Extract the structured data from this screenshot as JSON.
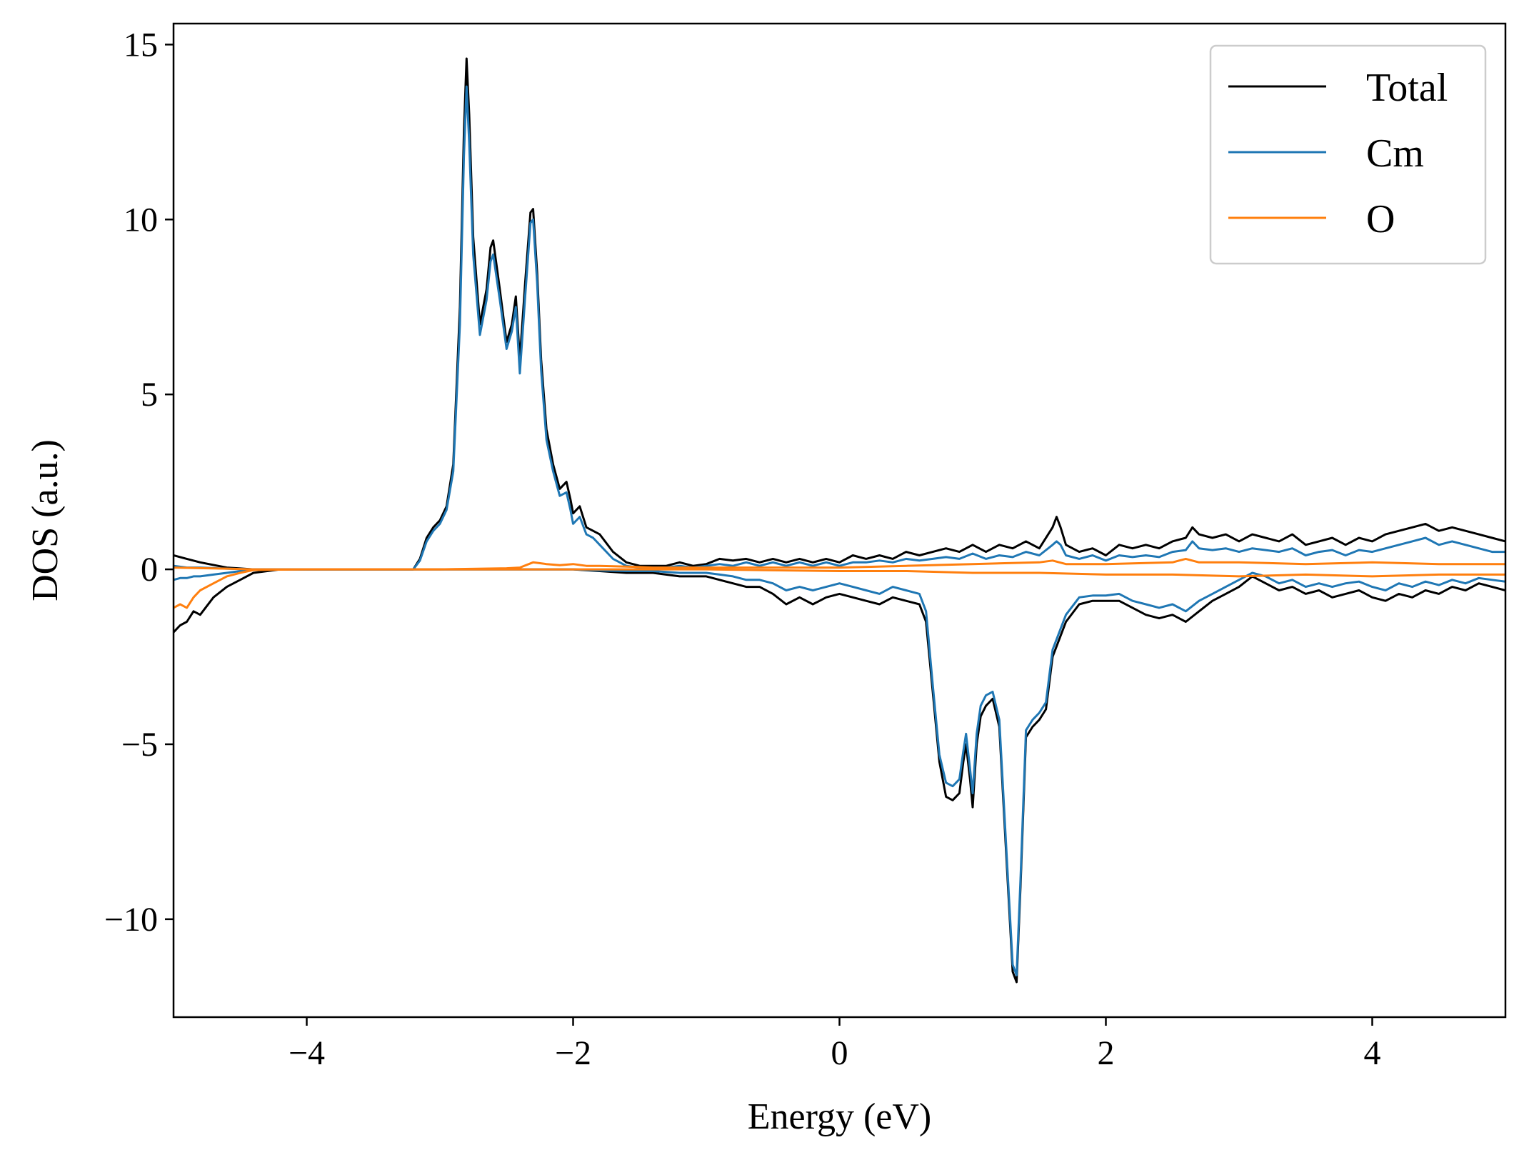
{
  "chart_data": {
    "type": "line",
    "title": "",
    "xlabel": "Energy (eV)",
    "ylabel": "DOS (a.u.)",
    "xlim": [
      -5,
      5
    ],
    "ylim": [
      -12.8,
      15.6
    ],
    "xticks": [
      -4,
      -2,
      0,
      2,
      4
    ],
    "xtick_labels": [
      "−4",
      "−2",
      "0",
      "2",
      "4"
    ],
    "yticks": [
      -10,
      -5,
      0,
      5,
      10,
      15
    ],
    "ytick_labels": [
      "−10",
      "−5",
      "0",
      "5",
      "10",
      "15"
    ],
    "grid": false,
    "legend_position": "top-right",
    "series": [
      {
        "name": "Total",
        "color": "#000000",
        "spin_up": {
          "x": [
            -5.0,
            -4.9,
            -4.8,
            -4.6,
            -4.4,
            -4.0,
            -3.5,
            -3.2,
            -3.15,
            -3.1,
            -3.05,
            -3.0,
            -2.95,
            -2.9,
            -2.85,
            -2.82,
            -2.8,
            -2.78,
            -2.75,
            -2.7,
            -2.65,
            -2.62,
            -2.6,
            -2.55,
            -2.5,
            -2.46,
            -2.43,
            -2.4,
            -2.36,
            -2.32,
            -2.3,
            -2.27,
            -2.24,
            -2.2,
            -2.15,
            -2.1,
            -2.05,
            -2.02,
            -2.0,
            -1.95,
            -1.9,
            -1.85,
            -1.8,
            -1.7,
            -1.6,
            -1.5,
            -1.4,
            -1.3,
            -1.2,
            -1.1,
            -1.0,
            -0.9,
            -0.8,
            -0.7,
            -0.6,
            -0.5,
            -0.4,
            -0.3,
            -0.2,
            -0.1,
            0.0,
            0.1,
            0.2,
            0.3,
            0.4,
            0.5,
            0.6,
            0.7,
            0.8,
            0.9,
            1.0,
            1.1,
            1.2,
            1.3,
            1.4,
            1.5,
            1.6,
            1.63,
            1.66,
            1.7,
            1.8,
            1.9,
            2.0,
            2.1,
            2.2,
            2.3,
            2.4,
            2.5,
            2.6,
            2.65,
            2.7,
            2.8,
            2.9,
            3.0,
            3.1,
            3.2,
            3.3,
            3.4,
            3.5,
            3.6,
            3.7,
            3.8,
            3.9,
            4.0,
            4.1,
            4.2,
            4.3,
            4.4,
            4.5,
            4.6,
            4.7,
            4.8,
            4.9,
            5.0
          ],
          "y": [
            0.4,
            0.3,
            0.2,
            0.05,
            0.0,
            0.0,
            0.0,
            0.0,
            0.3,
            0.9,
            1.2,
            1.4,
            1.8,
            3.0,
            7.5,
            12.5,
            14.6,
            13.0,
            9.5,
            7.0,
            8.0,
            9.2,
            9.4,
            8.0,
            6.5,
            7.0,
            7.8,
            6.0,
            8.2,
            10.2,
            10.3,
            8.5,
            6.0,
            4.0,
            3.0,
            2.3,
            2.5,
            2.0,
            1.6,
            1.8,
            1.2,
            1.1,
            1.0,
            0.5,
            0.2,
            0.1,
            0.1,
            0.1,
            0.2,
            0.1,
            0.15,
            0.3,
            0.25,
            0.3,
            0.2,
            0.3,
            0.2,
            0.3,
            0.2,
            0.3,
            0.2,
            0.4,
            0.3,
            0.4,
            0.3,
            0.5,
            0.4,
            0.5,
            0.6,
            0.5,
            0.7,
            0.5,
            0.7,
            0.6,
            0.8,
            0.6,
            1.2,
            1.5,
            1.2,
            0.7,
            0.5,
            0.6,
            0.4,
            0.7,
            0.6,
            0.7,
            0.6,
            0.8,
            0.9,
            1.2,
            1.0,
            0.9,
            1.0,
            0.8,
            1.0,
            0.9,
            0.8,
            1.0,
            0.7,
            0.8,
            0.9,
            0.7,
            0.9,
            0.8,
            1.0,
            1.1,
            1.2,
            1.3,
            1.1,
            1.2,
            1.1,
            1.0,
            0.9,
            0.8
          ]
        },
        "spin_down": {
          "x": [
            -5.0,
            -4.95,
            -4.9,
            -4.85,
            -4.8,
            -4.7,
            -4.6,
            -4.5,
            -4.4,
            -4.2,
            -3.5,
            -3.0,
            -2.5,
            -2.0,
            -1.8,
            -1.6,
            -1.4,
            -1.2,
            -1.0,
            -0.9,
            -0.8,
            -0.7,
            -0.6,
            -0.5,
            -0.4,
            -0.3,
            -0.2,
            -0.1,
            0.0,
            0.1,
            0.2,
            0.3,
            0.4,
            0.5,
            0.6,
            0.65,
            0.7,
            0.75,
            0.8,
            0.85,
            0.9,
            0.93,
            0.95,
            0.98,
            1.0,
            1.03,
            1.06,
            1.1,
            1.15,
            1.2,
            1.25,
            1.3,
            1.33,
            1.36,
            1.4,
            1.45,
            1.5,
            1.55,
            1.6,
            1.7,
            1.8,
            1.9,
            2.0,
            2.1,
            2.2,
            2.3,
            2.4,
            2.5,
            2.6,
            2.7,
            2.8,
            2.9,
            3.0,
            3.1,
            3.2,
            3.3,
            3.4,
            3.5,
            3.6,
            3.7,
            3.8,
            3.9,
            4.0,
            4.1,
            4.2,
            4.3,
            4.4,
            4.5,
            4.6,
            4.7,
            4.8,
            4.9,
            5.0
          ],
          "y": [
            -1.8,
            -1.6,
            -1.5,
            -1.2,
            -1.3,
            -0.8,
            -0.5,
            -0.3,
            -0.1,
            0.0,
            0.0,
            0.0,
            0.0,
            0.0,
            -0.05,
            -0.1,
            -0.1,
            -0.2,
            -0.2,
            -0.3,
            -0.4,
            -0.5,
            -0.5,
            -0.7,
            -1.0,
            -0.8,
            -1.0,
            -0.8,
            -0.7,
            -0.8,
            -0.9,
            -1.0,
            -0.8,
            -0.9,
            -1.0,
            -1.5,
            -3.5,
            -5.5,
            -6.5,
            -6.6,
            -6.4,
            -5.5,
            -5.0,
            -6.0,
            -6.8,
            -5.0,
            -4.2,
            -3.9,
            -3.7,
            -4.5,
            -8.0,
            -11.5,
            -11.8,
            -9.0,
            -4.8,
            -4.5,
            -4.3,
            -4.0,
            -2.5,
            -1.5,
            -1.0,
            -0.9,
            -0.9,
            -0.9,
            -1.1,
            -1.3,
            -1.4,
            -1.3,
            -1.5,
            -1.2,
            -0.9,
            -0.7,
            -0.5,
            -0.2,
            -0.4,
            -0.6,
            -0.5,
            -0.7,
            -0.6,
            -0.8,
            -0.7,
            -0.6,
            -0.8,
            -0.9,
            -0.7,
            -0.8,
            -0.6,
            -0.7,
            -0.5,
            -0.6,
            -0.4,
            -0.5,
            -0.6
          ]
        }
      },
      {
        "name": "Cm",
        "color": "#1f77b4",
        "spin_up": {
          "x": [
            -5.0,
            -4.9,
            -4.8,
            -4.6,
            -4.4,
            -4.0,
            -3.5,
            -3.2,
            -3.15,
            -3.1,
            -3.05,
            -3.0,
            -2.95,
            -2.9,
            -2.85,
            -2.82,
            -2.8,
            -2.78,
            -2.75,
            -2.7,
            -2.65,
            -2.62,
            -2.6,
            -2.55,
            -2.5,
            -2.46,
            -2.43,
            -2.4,
            -2.36,
            -2.32,
            -2.3,
            -2.27,
            -2.24,
            -2.2,
            -2.15,
            -2.1,
            -2.05,
            -2.02,
            -2.0,
            -1.95,
            -1.9,
            -1.85,
            -1.8,
            -1.7,
            -1.6,
            -1.5,
            -1.4,
            -1.3,
            -1.2,
            -1.1,
            -1.0,
            -0.9,
            -0.8,
            -0.7,
            -0.6,
            -0.5,
            -0.4,
            -0.3,
            -0.2,
            -0.1,
            0.0,
            0.1,
            0.2,
            0.3,
            0.4,
            0.5,
            0.6,
            0.7,
            0.8,
            0.9,
            1.0,
            1.1,
            1.2,
            1.3,
            1.4,
            1.5,
            1.6,
            1.63,
            1.66,
            1.7,
            1.8,
            1.9,
            2.0,
            2.1,
            2.2,
            2.3,
            2.4,
            2.5,
            2.6,
            2.65,
            2.7,
            2.8,
            2.9,
            3.0,
            3.1,
            3.2,
            3.3,
            3.4,
            3.5,
            3.6,
            3.7,
            3.8,
            3.9,
            4.0,
            4.1,
            4.2,
            4.3,
            4.4,
            4.5,
            4.6,
            4.7,
            4.8,
            4.9,
            5.0
          ],
          "y": [
            0.1,
            0.05,
            0.05,
            0.02,
            0.0,
            0.0,
            0.0,
            0.0,
            0.25,
            0.8,
            1.1,
            1.3,
            1.7,
            2.8,
            7.0,
            11.8,
            13.8,
            12.2,
            9.0,
            6.7,
            7.7,
            8.8,
            9.0,
            7.7,
            6.3,
            6.8,
            7.5,
            5.6,
            7.8,
            9.9,
            10.0,
            8.2,
            5.7,
            3.7,
            2.8,
            2.1,
            2.2,
            1.7,
            1.3,
            1.5,
            1.0,
            0.9,
            0.7,
            0.3,
            0.1,
            0.05,
            0.05,
            0.05,
            0.1,
            0.05,
            0.1,
            0.15,
            0.1,
            0.2,
            0.1,
            0.2,
            0.1,
            0.2,
            0.1,
            0.2,
            0.1,
            0.2,
            0.2,
            0.25,
            0.2,
            0.3,
            0.25,
            0.3,
            0.35,
            0.3,
            0.45,
            0.3,
            0.4,
            0.35,
            0.5,
            0.4,
            0.7,
            0.8,
            0.7,
            0.4,
            0.3,
            0.4,
            0.25,
            0.4,
            0.35,
            0.4,
            0.35,
            0.5,
            0.55,
            0.8,
            0.6,
            0.55,
            0.6,
            0.5,
            0.6,
            0.55,
            0.5,
            0.6,
            0.4,
            0.5,
            0.55,
            0.4,
            0.55,
            0.5,
            0.6,
            0.7,
            0.8,
            0.9,
            0.7,
            0.8,
            0.7,
            0.6,
            0.5,
            0.5
          ]
        },
        "spin_down": {
          "x": [
            -5.0,
            -4.95,
            -4.9,
            -4.85,
            -4.8,
            -4.7,
            -4.6,
            -4.5,
            -4.4,
            -4.2,
            -3.5,
            -3.0,
            -2.5,
            -2.0,
            -1.8,
            -1.6,
            -1.4,
            -1.2,
            -1.0,
            -0.9,
            -0.8,
            -0.7,
            -0.6,
            -0.5,
            -0.4,
            -0.3,
            -0.2,
            -0.1,
            0.0,
            0.1,
            0.2,
            0.3,
            0.4,
            0.5,
            0.6,
            0.65,
            0.7,
            0.75,
            0.8,
            0.85,
            0.9,
            0.93,
            0.95,
            0.98,
            1.0,
            1.03,
            1.06,
            1.1,
            1.15,
            1.2,
            1.25,
            1.3,
            1.33,
            1.36,
            1.4,
            1.45,
            1.5,
            1.55,
            1.6,
            1.7,
            1.8,
            1.9,
            2.0,
            2.1,
            2.2,
            2.3,
            2.4,
            2.5,
            2.6,
            2.7,
            2.8,
            2.9,
            3.0,
            3.1,
            3.2,
            3.3,
            3.4,
            3.5,
            3.6,
            3.7,
            3.8,
            3.9,
            4.0,
            4.1,
            4.2,
            4.3,
            4.4,
            4.5,
            4.6,
            4.7,
            4.8,
            4.9,
            5.0
          ],
          "y": [
            -0.3,
            -0.25,
            -0.25,
            -0.2,
            -0.2,
            -0.15,
            -0.1,
            -0.05,
            -0.02,
            0.0,
            0.0,
            0.0,
            0.0,
            0.0,
            -0.03,
            -0.05,
            -0.05,
            -0.1,
            -0.1,
            -0.15,
            -0.2,
            -0.3,
            -0.3,
            -0.4,
            -0.6,
            -0.5,
            -0.6,
            -0.5,
            -0.4,
            -0.5,
            -0.6,
            -0.7,
            -0.5,
            -0.6,
            -0.7,
            -1.2,
            -3.3,
            -5.3,
            -6.1,
            -6.2,
            -6.0,
            -5.2,
            -4.7,
            -5.7,
            -6.4,
            -4.7,
            -3.9,
            -3.6,
            -3.5,
            -4.3,
            -7.8,
            -11.3,
            -11.6,
            -8.8,
            -4.6,
            -4.3,
            -4.1,
            -3.8,
            -2.3,
            -1.3,
            -0.8,
            -0.75,
            -0.75,
            -0.7,
            -0.9,
            -1.0,
            -1.1,
            -1.0,
            -1.2,
            -0.9,
            -0.7,
            -0.5,
            -0.3,
            -0.1,
            -0.2,
            -0.4,
            -0.3,
            -0.5,
            -0.4,
            -0.5,
            -0.4,
            -0.35,
            -0.5,
            -0.6,
            -0.4,
            -0.5,
            -0.35,
            -0.45,
            -0.3,
            -0.4,
            -0.25,
            -0.3,
            -0.35
          ]
        }
      },
      {
        "name": "O",
        "color": "#ff7f0e",
        "spin_up": {
          "x": [
            -5.0,
            -4.6,
            -4.4,
            -3.0,
            -2.5,
            -2.4,
            -2.3,
            -2.2,
            -2.1,
            -2.0,
            -1.9,
            -1.8,
            -1.6,
            -1.4,
            -1.2,
            -1.0,
            -0.5,
            0.0,
            0.5,
            1.0,
            1.5,
            1.6,
            1.7,
            2.0,
            2.5,
            2.6,
            2.7,
            3.0,
            3.5,
            4.0,
            4.5,
            5.0
          ],
          "y": [
            0.05,
            0.02,
            0.0,
            0.0,
            0.03,
            0.05,
            0.2,
            0.15,
            0.12,
            0.15,
            0.1,
            0.1,
            0.08,
            0.05,
            0.05,
            0.05,
            0.05,
            0.05,
            0.1,
            0.15,
            0.2,
            0.25,
            0.15,
            0.15,
            0.2,
            0.3,
            0.2,
            0.2,
            0.15,
            0.2,
            0.15,
            0.15
          ]
        },
        "spin_down": {
          "x": [
            -5.0,
            -4.95,
            -4.9,
            -4.85,
            -4.8,
            -4.7,
            -4.6,
            -4.5,
            -4.4,
            -4.0,
            -3.0,
            -2.0,
            -1.0,
            0.0,
            0.5,
            1.0,
            1.5,
            2.0,
            2.5,
            3.0,
            3.5,
            4.0,
            4.5,
            5.0
          ],
          "y": [
            -1.1,
            -1.0,
            -1.1,
            -0.8,
            -0.6,
            -0.4,
            -0.2,
            -0.1,
            -0.02,
            0.0,
            0.0,
            0.0,
            0.0,
            -0.05,
            -0.05,
            -0.1,
            -0.1,
            -0.15,
            -0.15,
            -0.2,
            -0.15,
            -0.2,
            -0.15,
            -0.15
          ]
        }
      }
    ]
  }
}
